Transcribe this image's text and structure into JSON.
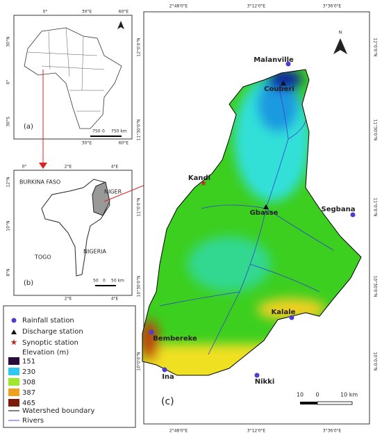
{
  "panel_a": {
    "top_ticks": [
      "0°",
      "30°E",
      "60°E"
    ],
    "left_ticks": [
      "30°N",
      "0°",
      "30°S"
    ],
    "bottom_ticks": [
      "30°E",
      "60°E"
    ],
    "label": "(a)",
    "scale": [
      "750",
      "0",
      "750 km"
    ]
  },
  "panel_b": {
    "top_ticks": [
      "0°",
      "2°E",
      "4°E"
    ],
    "left_ticks": [
      "12°N",
      "10°N",
      "8°N"
    ],
    "bottom_ticks": [
      "2°E",
      "4°E"
    ],
    "countries": [
      "BURKINA FASO",
      "NIGER",
      "TOGO",
      "NIGERIA"
    ],
    "label": "(b)",
    "scale": [
      "50",
      "0",
      "50 km"
    ]
  },
  "legend": {
    "items": [
      "Rainfall station",
      "Discharge station",
      "Synoptic station"
    ],
    "elevation_title": "Elevation (m)",
    "elevation": [
      151,
      230,
      308,
      387,
      465
    ],
    "lines": [
      "Watershed boundary",
      "Rivers"
    ]
  },
  "panel_c": {
    "x_ticks": [
      "2°48'0\"E",
      "3°12'0\"E",
      "3°36'0\"E"
    ],
    "y_ticks": [
      "12°0'0\"N",
      "11°30'0\"N",
      "11°0'0\"N",
      "10°30'0\"N",
      "10°0'0\"N"
    ],
    "stations": [
      "Malanville",
      "Couberi",
      "Kandi",
      "Gbasse",
      "Segbana",
      "Kalale",
      "Bembereke",
      "Ina",
      "Nikki"
    ],
    "label": "(c)",
    "scale": [
      "10",
      "0",
      "10 km"
    ],
    "north": "N"
  }
}
